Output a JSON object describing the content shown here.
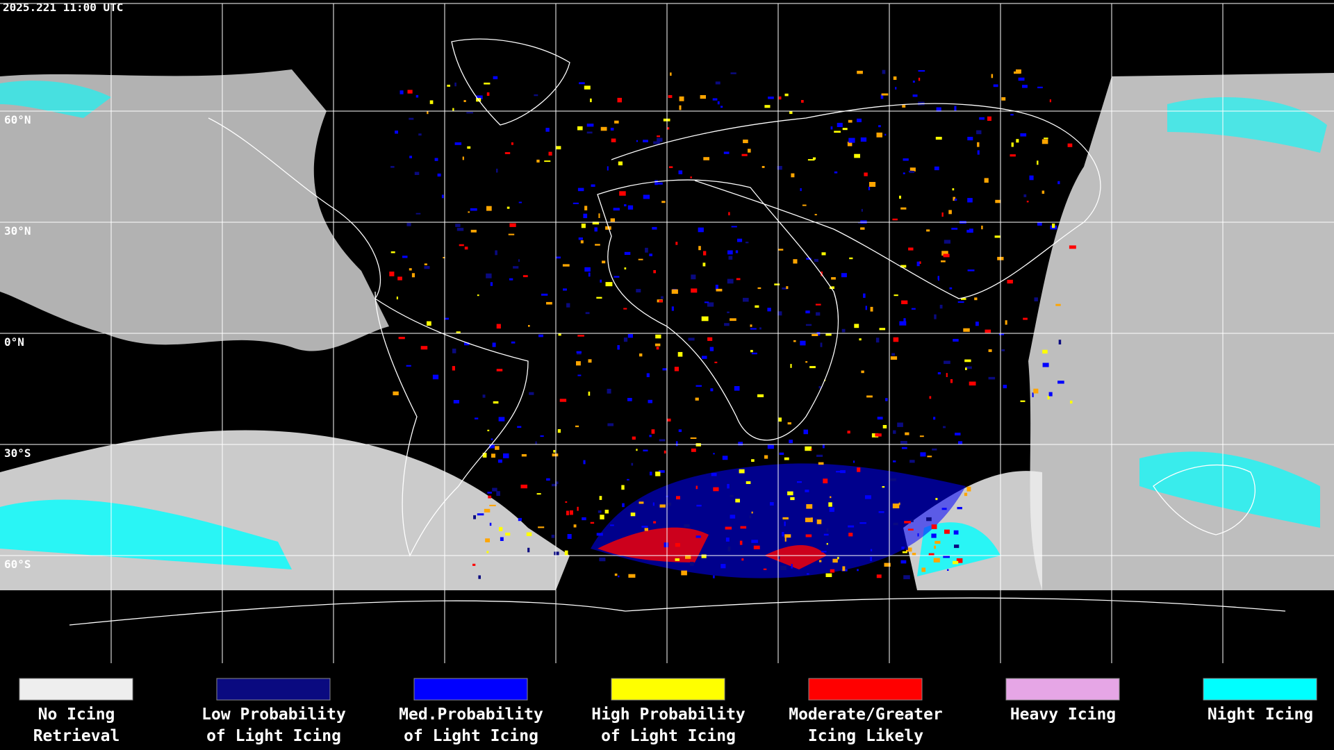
{
  "header": {
    "title": "2025.221 11:00 UTC"
  },
  "map": {
    "latitude_labels": [
      "60°N",
      "30°N",
      "0°N",
      "30°S",
      "60°S"
    ]
  },
  "legend": [
    {
      "label_lines": [
        "No Icing",
        "Retrieval"
      ],
      "color": "#eeeeee"
    },
    {
      "label_lines": [
        "Low Probability",
        "of Light Icing"
      ],
      "color": "#0a0a80"
    },
    {
      "label_lines": [
        "Med.Probability",
        "of Light Icing"
      ],
      "color": "#0000ff"
    },
    {
      "label_lines": [
        "High Probability",
        "of Light Icing"
      ],
      "color": "#ffff00"
    },
    {
      "label_lines": [
        "Moderate/Greater",
        "Icing Likely"
      ],
      "color": "#ff0000"
    },
    {
      "label_lines": [
        "Heavy Icing"
      ],
      "color": "#e6a6e6"
    },
    {
      "label_lines": [
        "Night Icing"
      ],
      "color": "#00ffff"
    }
  ]
}
